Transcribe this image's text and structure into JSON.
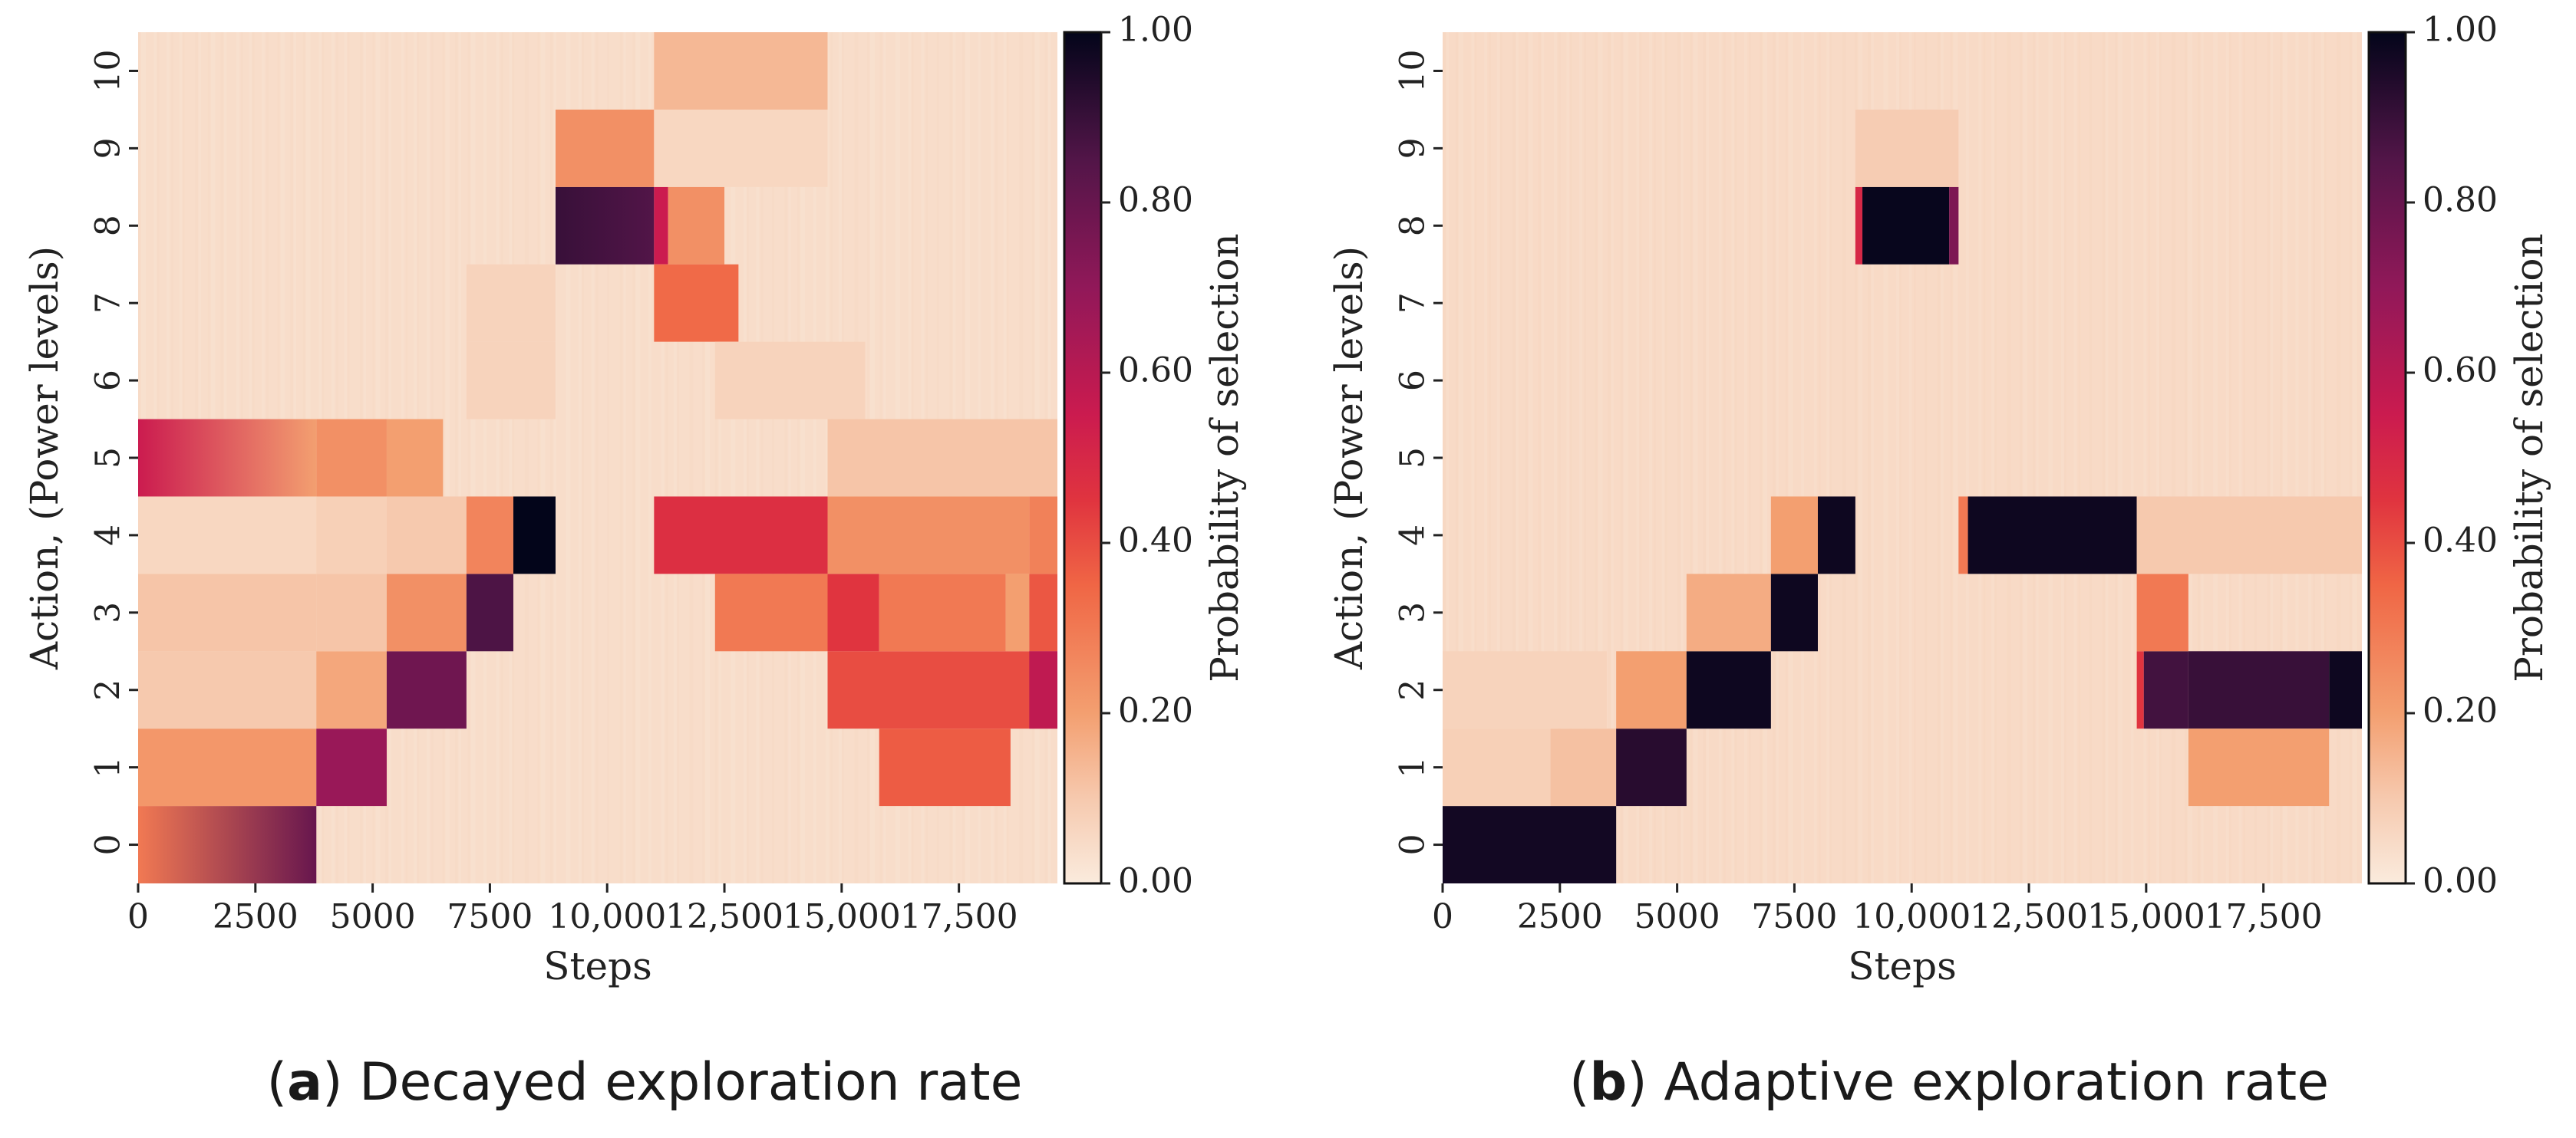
{
  "chart_data": [
    {
      "type": "heatmap",
      "panel": "a",
      "caption_letter": "a",
      "caption": "Decayed exploration rate",
      "xlabel": "Steps",
      "ylabel": "Action, (Power levels)",
      "x_ticks": [
        0,
        2500,
        5000,
        7500,
        10000,
        12500,
        15000,
        17500
      ],
      "x_tick_labels": [
        "0",
        "2500",
        "5000",
        "7500",
        "10,000",
        "12,500",
        "15,000",
        "17,500"
      ],
      "y_categories": [
        "0",
        "1",
        "2",
        "3",
        "4",
        "5",
        "6",
        "7",
        "8",
        "9",
        "10"
      ],
      "xlim": [
        0,
        19600
      ],
      "colorbar": {
        "label": "Probability of selection",
        "ticks": [
          "0.00",
          "0.20",
          "0.40",
          "0.60",
          "0.80",
          "1.00"
        ],
        "range": [
          0,
          1
        ]
      },
      "background_value": 0.04,
      "segments": [
        {
          "action": 0,
          "start": 0,
          "end": 3800,
          "from": 0.3,
          "to": 0.8
        },
        {
          "action": 1,
          "start": 0,
          "end": 3800,
          "value": 0.22
        },
        {
          "action": 2,
          "start": 0,
          "end": 3800,
          "value": 0.1
        },
        {
          "action": 3,
          "start": 0,
          "end": 3800,
          "value": 0.11
        },
        {
          "action": 4,
          "start": 0,
          "end": 3800,
          "value": 0.06
        },
        {
          "action": 5,
          "start": 0,
          "end": 3800,
          "from": 0.55,
          "to": 0.2
        },
        {
          "action": 1,
          "start": 3800,
          "end": 5300,
          "value": 0.68
        },
        {
          "action": 2,
          "start": 3800,
          "end": 5300,
          "value": 0.18
        },
        {
          "action": 3,
          "start": 3800,
          "end": 5300,
          "value": 0.11
        },
        {
          "action": 4,
          "start": 3800,
          "end": 5300,
          "value": 0.08
        },
        {
          "action": 5,
          "start": 3800,
          "end": 5300,
          "value": 0.24
        },
        {
          "action": 2,
          "start": 5300,
          "end": 7000,
          "value": 0.78
        },
        {
          "action": 3,
          "start": 5300,
          "end": 7000,
          "value": 0.24
        },
        {
          "action": 4,
          "start": 5300,
          "end": 7000,
          "value": 0.1
        },
        {
          "action": 5,
          "start": 5300,
          "end": 6500,
          "value": 0.2
        },
        {
          "action": 6,
          "start": 7000,
          "end": 8900,
          "value": 0.07
        },
        {
          "action": 7,
          "start": 7000,
          "end": 8900,
          "value": 0.07
        },
        {
          "action": 3,
          "start": 7000,
          "end": 8000,
          "value": 0.86
        },
        {
          "action": 4,
          "start": 7000,
          "end": 8000,
          "value": 0.27
        },
        {
          "action": 4,
          "start": 8000,
          "end": 8900,
          "value": 1.0
        },
        {
          "action": 8,
          "start": 8900,
          "end": 11000,
          "from": 0.9,
          "to": 0.85
        },
        {
          "action": 8,
          "start": 11000,
          "end": 11300,
          "value": 0.55
        },
        {
          "action": 9,
          "start": 8900,
          "end": 11000,
          "value": 0.24
        },
        {
          "action": 8,
          "start": 11300,
          "end": 12500,
          "value": 0.24
        },
        {
          "action": 7,
          "start": 11000,
          "end": 12800,
          "value": 0.34
        },
        {
          "action": 4,
          "start": 11000,
          "end": 14700,
          "value": 0.47
        },
        {
          "action": 3,
          "start": 12300,
          "end": 14700,
          "value": 0.3
        },
        {
          "action": 6,
          "start": 12300,
          "end": 15500,
          "value": 0.07
        },
        {
          "action": 9,
          "start": 11000,
          "end": 14700,
          "value": 0.06
        },
        {
          "action": 10,
          "start": 11000,
          "end": 14700,
          "value": 0.14
        },
        {
          "action": 2,
          "start": 14700,
          "end": 19600,
          "value": 0.4
        },
        {
          "action": 3,
          "start": 14700,
          "end": 15800,
          "value": 0.45
        },
        {
          "action": 3,
          "start": 15800,
          "end": 18500,
          "value": 0.3
        },
        {
          "action": 3,
          "start": 18500,
          "end": 19000,
          "value": 0.2
        },
        {
          "action": 3,
          "start": 19000,
          "end": 19600,
          "value": 0.38
        },
        {
          "action": 4,
          "start": 14700,
          "end": 19000,
          "value": 0.24
        },
        {
          "action": 4,
          "start": 19000,
          "end": 19600,
          "value": 0.28
        },
        {
          "action": 1,
          "start": 15800,
          "end": 18600,
          "value": 0.37
        },
        {
          "action": 5,
          "start": 14700,
          "end": 19600,
          "value": 0.11
        },
        {
          "action": 2,
          "start": 19000,
          "end": 19600,
          "value": 0.58
        }
      ]
    },
    {
      "type": "heatmap",
      "panel": "b",
      "caption_letter": "b",
      "caption": "Adaptive exploration rate",
      "xlabel": "Steps",
      "ylabel": "Action, (Power levels)",
      "x_ticks": [
        0,
        2500,
        5000,
        7500,
        10000,
        12500,
        15000,
        17500
      ],
      "x_tick_labels": [
        "0",
        "2500",
        "5000",
        "7500",
        "10,000",
        "12,500",
        "15,000",
        "17,500"
      ],
      "y_categories": [
        "0",
        "1",
        "2",
        "3",
        "4",
        "5",
        "6",
        "7",
        "8",
        "9",
        "10"
      ],
      "xlim": [
        0,
        19600
      ],
      "colorbar": {
        "label": "Probability of selection",
        "ticks": [
          "0.00",
          "0.20",
          "0.40",
          "0.60",
          "0.80",
          "1.00"
        ],
        "range": [
          0,
          1
        ]
      },
      "background_value": 0.05,
      "segments": [
        {
          "action": 0,
          "start": 0,
          "end": 3700,
          "value": 0.97
        },
        {
          "action": 1,
          "start": 0,
          "end": 2300,
          "value": 0.08
        },
        {
          "action": 1,
          "start": 2300,
          "end": 3700,
          "value": 0.12
        },
        {
          "action": 2,
          "start": 0,
          "end": 3500,
          "value": 0.07
        },
        {
          "action": 1,
          "start": 3700,
          "end": 5200,
          "value": 0.93
        },
        {
          "action": 2,
          "start": 3700,
          "end": 5200,
          "value": 0.2
        },
        {
          "action": 2,
          "start": 5200,
          "end": 7000,
          "value": 0.98
        },
        {
          "action": 3,
          "start": 5200,
          "end": 7000,
          "value": 0.17
        },
        {
          "action": 3,
          "start": 7000,
          "end": 8000,
          "value": 0.98
        },
        {
          "action": 4,
          "start": 7000,
          "end": 8000,
          "value": 0.2
        },
        {
          "action": 4,
          "start": 8000,
          "end": 8800,
          "value": 0.98
        },
        {
          "action": 8,
          "start": 8800,
          "end": 8950,
          "value": 0.5
        },
        {
          "action": 8,
          "start": 8950,
          "end": 10800,
          "value": 0.99
        },
        {
          "action": 8,
          "start": 10800,
          "end": 11000,
          "value": 0.75
        },
        {
          "action": 9,
          "start": 8800,
          "end": 11000,
          "value": 0.09
        },
        {
          "action": 4,
          "start": 11000,
          "end": 11200,
          "value": 0.3
        },
        {
          "action": 4,
          "start": 11200,
          "end": 14800,
          "value": 0.98
        },
        {
          "action": 2,
          "start": 14800,
          "end": 14950,
          "value": 0.45
        },
        {
          "action": 2,
          "start": 14950,
          "end": 15900,
          "value": 0.88
        },
        {
          "action": 2,
          "start": 15900,
          "end": 18900,
          "value": 0.9
        },
        {
          "action": 2,
          "start": 18900,
          "end": 19600,
          "value": 0.98
        },
        {
          "action": 3,
          "start": 14800,
          "end": 15900,
          "value": 0.3
        },
        {
          "action": 1,
          "start": 15900,
          "end": 18900,
          "value": 0.2
        },
        {
          "action": 4,
          "start": 14800,
          "end": 19600,
          "value": 0.1
        }
      ]
    }
  ]
}
